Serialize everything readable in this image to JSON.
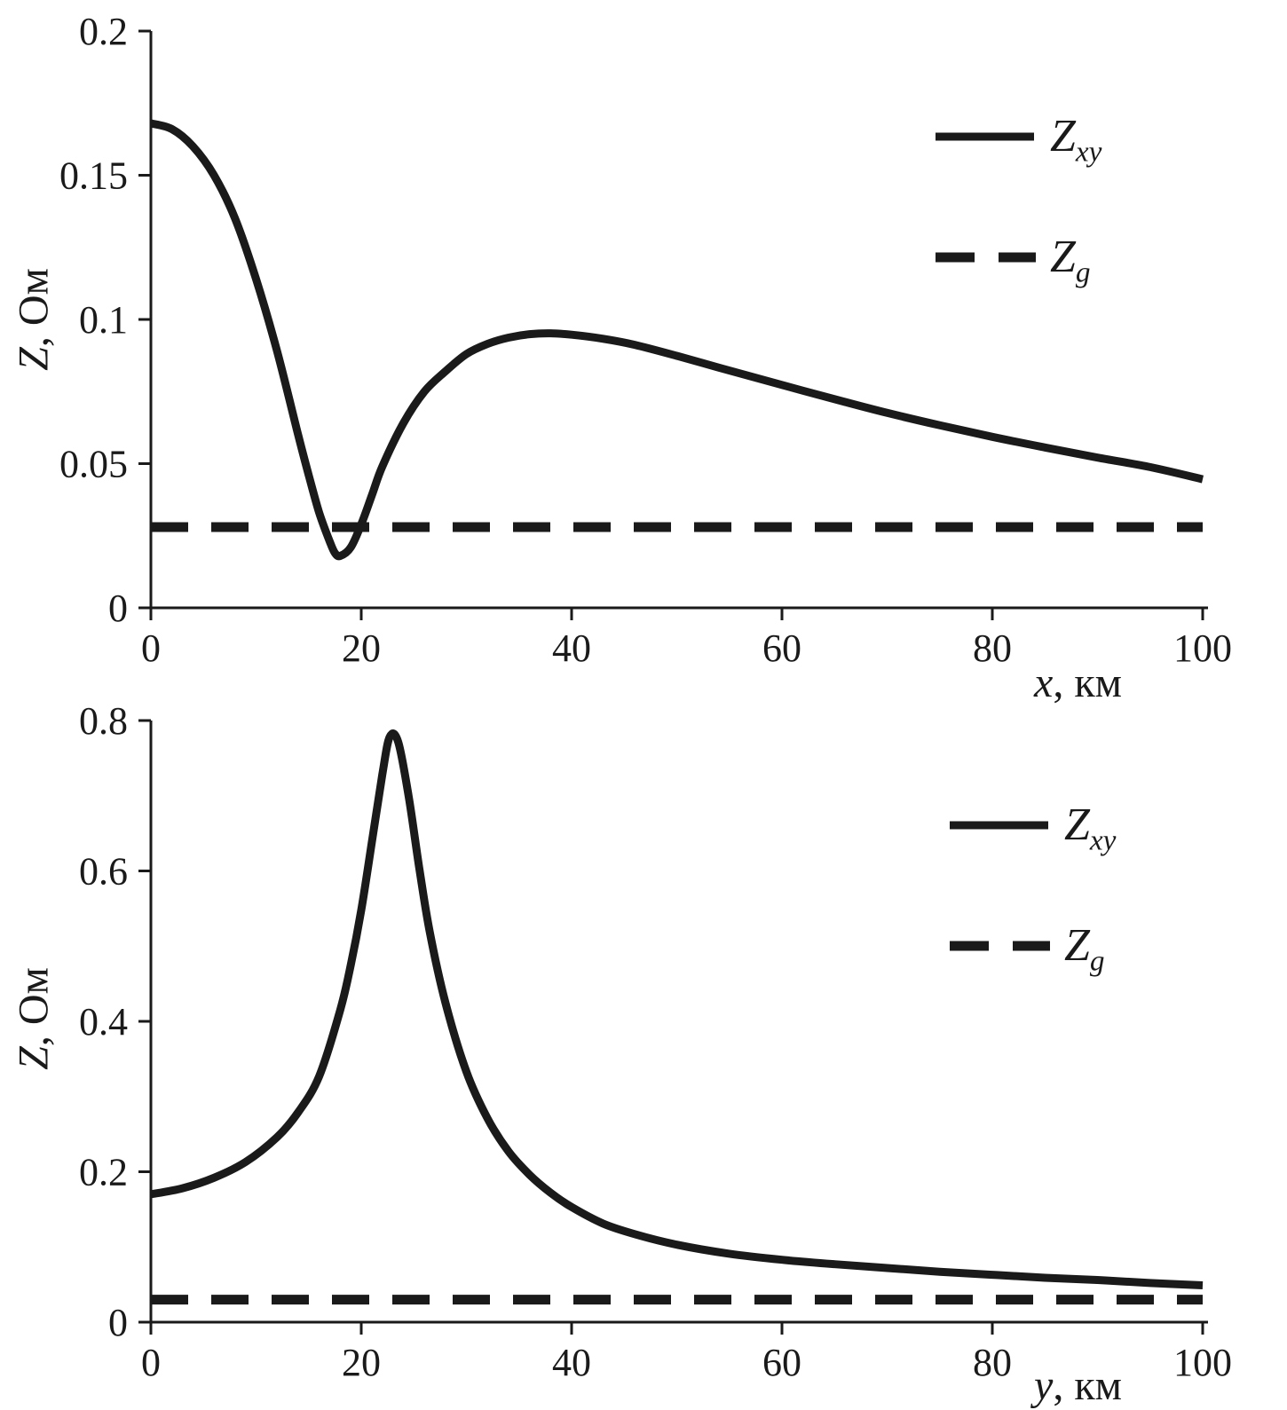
{
  "page": {
    "background": "#ffffff",
    "ink_color": "#1a1a1a"
  },
  "chart_data": [
    {
      "type": "line",
      "title": "",
      "xlabel_var": "x",
      "xlabel_unit": ", км",
      "ylabel_var": "Z",
      "ylabel_unit": ", Ом",
      "xlim": [
        0,
        100
      ],
      "ylim": [
        0,
        0.2
      ],
      "xticks": [
        0,
        20,
        40,
        60,
        80,
        100
      ],
      "xtick_labels": [
        "0",
        "20",
        "40",
        "60",
        "80",
        "100"
      ],
      "yticks": [
        0,
        0.05,
        0.1,
        0.15,
        0.2
      ],
      "ytick_labels": [
        "0",
        "0.05",
        "0.1",
        "0.15",
        "0.2"
      ],
      "grid": false,
      "legend_position": "upper-right",
      "axis_color": "#1a1a1a",
      "series": [
        {
          "name": "Zxy",
          "label_main": "Z",
          "label_sub": "xy",
          "style": "solid",
          "color": "#1a1a1a",
          "x": [
            0,
            2,
            4,
            6,
            8,
            10,
            12,
            14,
            15,
            16,
            17,
            17.5,
            18,
            19,
            20,
            21,
            22,
            24,
            26,
            28,
            30,
            32,
            34,
            36,
            38,
            40,
            43,
            46,
            50,
            54,
            58,
            62,
            66,
            70,
            75,
            80,
            85,
            90,
            95,
            100
          ],
          "y": [
            0.168,
            0.166,
            0.16,
            0.15,
            0.135,
            0.114,
            0.089,
            0.06,
            0.046,
            0.033,
            0.023,
            0.019,
            0.018,
            0.021,
            0.029,
            0.039,
            0.049,
            0.064,
            0.075,
            0.082,
            0.088,
            0.0915,
            0.0937,
            0.0949,
            0.0952,
            0.0947,
            0.0933,
            0.0912,
            0.0874,
            0.0833,
            0.0793,
            0.0753,
            0.0714,
            0.0676,
            0.0633,
            0.0593,
            0.0556,
            0.0521,
            0.0488,
            0.0446
          ]
        },
        {
          "name": "Zg",
          "label_main": "Z",
          "label_sub": "g",
          "style": "dashed",
          "color": "#1a1a1a",
          "x": [
            0,
            100
          ],
          "y": [
            0.028,
            0.028
          ]
        }
      ]
    },
    {
      "type": "line",
      "title": "",
      "xlabel_var": "y",
      "xlabel_unit": ", км",
      "ylabel_var": "Z",
      "ylabel_unit": ", Ом",
      "xlim": [
        0,
        100
      ],
      "ylim": [
        0,
        0.8
      ],
      "xticks": [
        0,
        20,
        40,
        60,
        80,
        100
      ],
      "xtick_labels": [
        "0",
        "20",
        "40",
        "60",
        "80",
        "100"
      ],
      "yticks": [
        0,
        0.2,
        0.4,
        0.6,
        0.8
      ],
      "ytick_labels": [
        "0",
        "0.2",
        "0.4",
        "0.6",
        "0.8"
      ],
      "grid": false,
      "legend_position": "upper-right",
      "axis_color": "#1a1a1a",
      "series": [
        {
          "name": "Zxy",
          "label_main": "Z",
          "label_sub": "xy",
          "style": "solid",
          "color": "#1a1a1a",
          "x": [
            0,
            3,
            6,
            9,
            12,
            14,
            16,
            18,
            19,
            20,
            21,
            22,
            22.7,
            23.5,
            24.5,
            25.5,
            26.5,
            28,
            30,
            32,
            34,
            36,
            38,
            40,
            43,
            46,
            50,
            55,
            60,
            65,
            70,
            75,
            80,
            85,
            90,
            95,
            100
          ],
          "y": [
            0.17,
            0.178,
            0.192,
            0.213,
            0.246,
            0.279,
            0.327,
            0.415,
            0.475,
            0.548,
            0.638,
            0.728,
            0.778,
            0.772,
            0.7,
            0.605,
            0.52,
            0.425,
            0.333,
            0.271,
            0.227,
            0.196,
            0.172,
            0.153,
            0.131,
            0.117,
            0.103,
            0.091,
            0.083,
            0.077,
            0.072,
            0.067,
            0.063,
            0.059,
            0.056,
            0.052,
            0.049
          ]
        },
        {
          "name": "Zg",
          "label_main": "Z",
          "label_sub": "g",
          "style": "dashed",
          "color": "#1a1a1a",
          "x": [
            0,
            100
          ],
          "y": [
            0.03,
            0.03
          ]
        }
      ]
    }
  ]
}
